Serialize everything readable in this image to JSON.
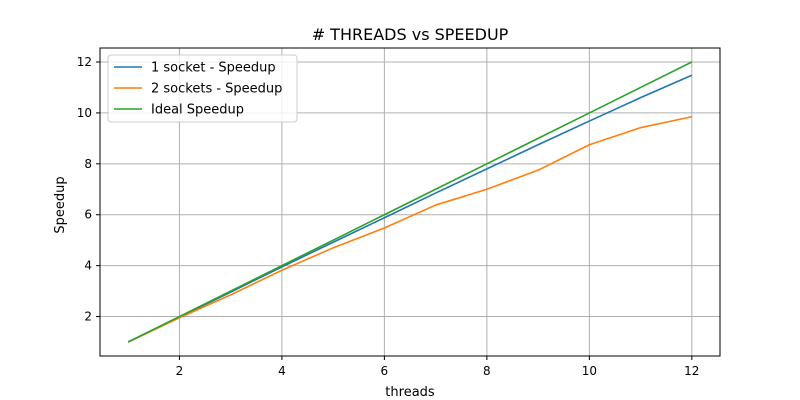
{
  "chart_data": {
    "type": "line",
    "title": "# THREADS vs SPEEDUP",
    "xlabel": "threads",
    "ylabel": "Speedup",
    "x": [
      1,
      2,
      3,
      4,
      5,
      6,
      7,
      8,
      9,
      10,
      11,
      12
    ],
    "xticks": [
      2,
      4,
      6,
      8,
      10,
      12
    ],
    "yticks": [
      2,
      4,
      6,
      8,
      10,
      12
    ],
    "xlim": [
      0.45,
      12.55
    ],
    "ylim": [
      0.45,
      12.55
    ],
    "grid": true,
    "legend_position": "top-left",
    "series": [
      {
        "name": "1 socket - Speedup",
        "color": "#1f77b4",
        "values": [
          1.0,
          1.98,
          2.96,
          3.95,
          4.92,
          5.88,
          6.85,
          7.8,
          8.75,
          9.68,
          10.6,
          11.48
        ]
      },
      {
        "name": "2 sockets - Speedup",
        "color": "#ff7f0e",
        "values": [
          1.0,
          1.95,
          2.85,
          3.82,
          4.7,
          5.48,
          6.38,
          7.0,
          7.75,
          8.75,
          9.42,
          9.85
        ]
      },
      {
        "name": "Ideal Speedup",
        "color": "#2ca02c",
        "values": [
          1,
          2,
          3,
          4,
          5,
          6,
          7,
          8,
          9,
          10,
          11,
          12
        ]
      }
    ]
  }
}
